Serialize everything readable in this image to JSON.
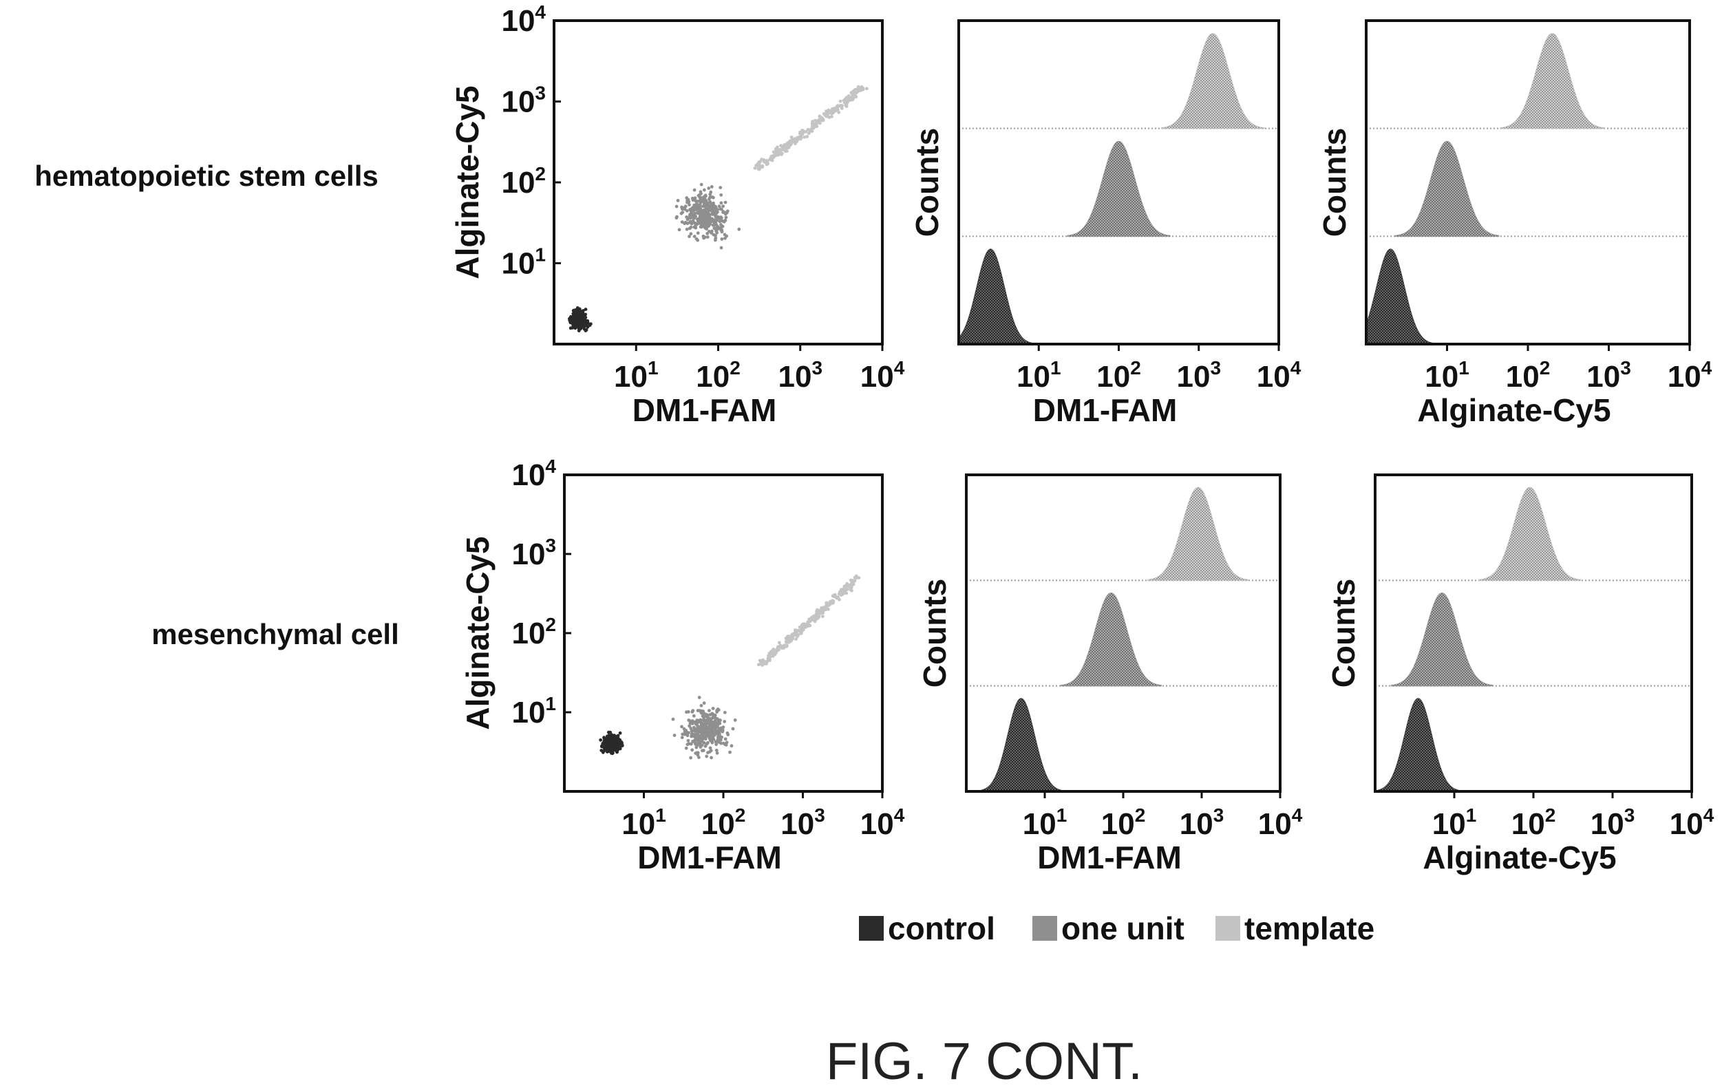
{
  "figure_caption": "FIG. 7 CONT.",
  "legend": [
    {
      "label": "control",
      "color": "#2a2a2a"
    },
    {
      "label": "one unit",
      "color": "#8f8f8f"
    },
    {
      "label": "template",
      "color": "#c4c4c4"
    }
  ],
  "chart_data": [
    {
      "type": "scatter",
      "row_label": "hematopoietic stem cells",
      "xlabel": "DM1-FAM",
      "ylabel": "Alginate-Cy5",
      "x_scale": "log",
      "y_scale": "log",
      "xlim": [
        1,
        10000
      ],
      "ylim": [
        1,
        10000
      ],
      "x_tick_labels": [
        "10^1",
        "10^2",
        "10^3",
        "10^4"
      ],
      "y_tick_labels": [
        "10^1",
        "10^2",
        "10^3",
        "10^4"
      ],
      "clusters": [
        {
          "series": "control",
          "x": 2,
          "y": 2
        },
        {
          "series": "one unit",
          "x": 70,
          "y": 40
        },
        {
          "series": "template",
          "x_range": [
            300,
            6000
          ],
          "y_range": [
            150,
            1500
          ]
        }
      ]
    },
    {
      "type": "histogram",
      "row_label": "hematopoietic stem cells",
      "xlabel": "DM1-FAM",
      "ylabel": "Counts",
      "x_scale": "log",
      "xlim": [
        1,
        10000
      ],
      "x_tick_labels": [
        "10^1",
        "10^2",
        "10^3",
        "10^4"
      ],
      "series": [
        {
          "name": "control",
          "peak": 2.5
        },
        {
          "name": "one unit",
          "peak": 100
        },
        {
          "name": "template",
          "peak": 1500
        }
      ]
    },
    {
      "type": "histogram",
      "row_label": "hematopoietic stem cells",
      "xlabel": "Alginate-Cy5",
      "ylabel": "Counts",
      "x_scale": "log",
      "xlim": [
        1,
        10000
      ],
      "x_tick_labels": [
        "10^1",
        "10^2",
        "10^3",
        "10^4"
      ],
      "series": [
        {
          "name": "control",
          "peak": 2
        },
        {
          "name": "one unit",
          "peak": 10
        },
        {
          "name": "template",
          "peak": 200
        }
      ]
    },
    {
      "type": "scatter",
      "row_label": "mesenchymal cell",
      "xlabel": "DM1-FAM",
      "ylabel": "Alginate-Cy5",
      "x_scale": "log",
      "y_scale": "log",
      "xlim": [
        1,
        10000
      ],
      "ylim": [
        1,
        10000
      ],
      "x_tick_labels": [
        "10^1",
        "10^2",
        "10^3",
        "10^4"
      ],
      "y_tick_labels": [
        "10^1",
        "10^2",
        "10^3",
        "10^4"
      ],
      "clusters": [
        {
          "series": "control",
          "x": 4,
          "y": 4
        },
        {
          "series": "one unit",
          "x": 60,
          "y": 6
        },
        {
          "series": "template",
          "x_range": [
            300,
            5000
          ],
          "y_range": [
            40,
            500
          ]
        }
      ]
    },
    {
      "type": "histogram",
      "row_label": "mesenchymal cell",
      "xlabel": "DM1-FAM",
      "ylabel": "Counts",
      "x_scale": "log",
      "xlim": [
        1,
        10000
      ],
      "x_tick_labels": [
        "10^1",
        "10^2",
        "10^3",
        "10^4"
      ],
      "series": [
        {
          "name": "control",
          "peak": 5
        },
        {
          "name": "one unit",
          "peak": 70
        },
        {
          "name": "template",
          "peak": 900
        }
      ]
    },
    {
      "type": "histogram",
      "row_label": "mesenchymal cell",
      "xlabel": "Alginate-Cy5",
      "ylabel": "Counts",
      "x_scale": "log",
      "xlim": [
        1,
        10000
      ],
      "x_tick_labels": [
        "10^1",
        "10^2",
        "10^3",
        "10^4"
      ],
      "series": [
        {
          "name": "control",
          "peak": 3.5
        },
        {
          "name": "one unit",
          "peak": 7
        },
        {
          "name": "template",
          "peak": 90
        }
      ]
    }
  ]
}
